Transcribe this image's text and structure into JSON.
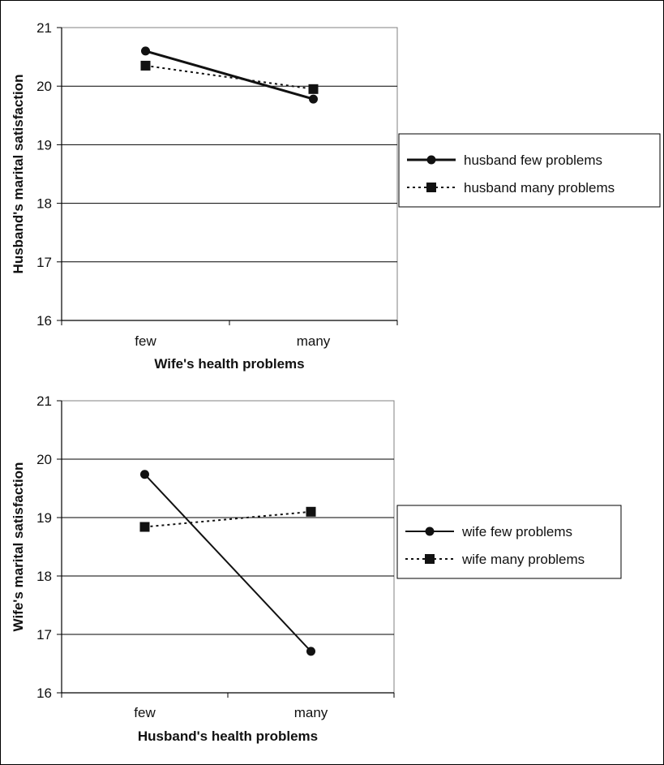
{
  "chart_data": [
    {
      "type": "line",
      "xlabel": "Wife's health problems",
      "ylabel": "Husband's marital satisfaction",
      "categories": [
        "few",
        "many"
      ],
      "ylim": [
        16,
        21
      ],
      "yticks": [
        "16",
        "17",
        "18",
        "19",
        "20",
        "21"
      ],
      "grid": true,
      "legend": "right",
      "series": [
        {
          "name": "husband few problems",
          "values": [
            20.6,
            19.78
          ],
          "style": "solid",
          "marker": "circle",
          "color": "#111111"
        },
        {
          "name": "husband many problems",
          "values": [
            20.35,
            19.95
          ],
          "style": "dotted",
          "marker": "square",
          "color": "#111111"
        }
      ]
    },
    {
      "type": "line",
      "xlabel": "Husband's health problems",
      "ylabel": "Wife's marital satisfaction",
      "categories": [
        "few",
        "many"
      ],
      "ylim": [
        16,
        21
      ],
      "yticks": [
        "16",
        "17",
        "18",
        "19",
        "20",
        "21"
      ],
      "grid": true,
      "legend": "right",
      "series": [
        {
          "name": "wife few problems",
          "values": [
            19.74,
            16.71
          ],
          "style": "solid",
          "marker": "circle",
          "color": "#111111"
        },
        {
          "name": "wife many problems",
          "values": [
            18.84,
            19.1
          ],
          "style": "dotted",
          "marker": "square",
          "color": "#111111"
        }
      ]
    }
  ]
}
